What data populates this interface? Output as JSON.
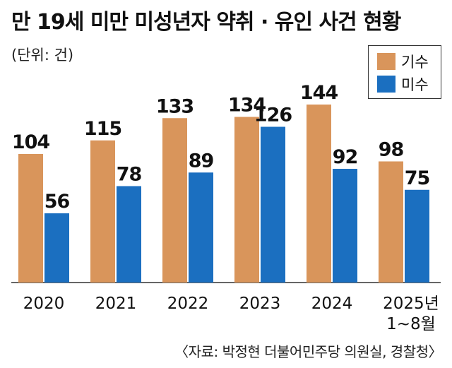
{
  "title": "만 19세 미만 미성년자 약취 · 유인 사건 현황",
  "unit_label": "(단위: 건)",
  "source": "〈자료: 박정현 더불어민주당 의원실, 경찰청〉",
  "colors": {
    "series_1": "#D9955B",
    "series_2": "#1B6FC0",
    "axis": "#333333"
  },
  "chart_data": {
    "type": "bar",
    "categories": [
      "2020",
      "2021",
      "2022",
      "2023",
      "2024",
      "2025년 1~8월"
    ],
    "category_lines": [
      [
        "2020"
      ],
      [
        "2021"
      ],
      [
        "2022"
      ],
      [
        "2023"
      ],
      [
        "2024"
      ],
      [
        "2025년",
        "1~8월"
      ]
    ],
    "series": [
      {
        "name": "기수",
        "values": [
          104,
          115,
          133,
          134,
          144,
          98
        ]
      },
      {
        "name": "미수",
        "values": [
          56,
          78,
          89,
          126,
          92,
          75
        ]
      }
    ],
    "ylim": [
      0,
      160
    ],
    "legend_position": "top-right",
    "grid": false,
    "data_labels": true
  }
}
